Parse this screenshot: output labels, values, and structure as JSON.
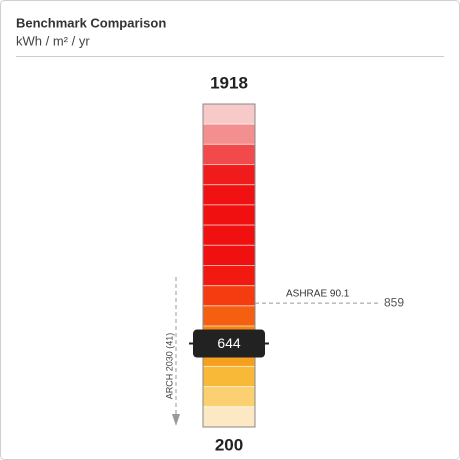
{
  "chart_data": {
    "type": "gauge",
    "title": "Benchmark Comparison",
    "subtitle": "kWh / m² / yr",
    "ylim": [
      200,
      1918
    ],
    "value": 644,
    "benchmark": {
      "label": "ASHRAE 90.1",
      "value": 859
    },
    "annotation": "ARCH 2030 (41)",
    "colors": [
      "#f7c9c9",
      "#f48f8f",
      "#f24a4a",
      "#f01c1c",
      "#f01212",
      "#f01010",
      "#f01010",
      "#f01010",
      "#f21a10",
      "#f43c10",
      "#f56010",
      "#f68410",
      "#f7a020",
      "#f8b838",
      "#fad070",
      "#fde8c4"
    ]
  }
}
